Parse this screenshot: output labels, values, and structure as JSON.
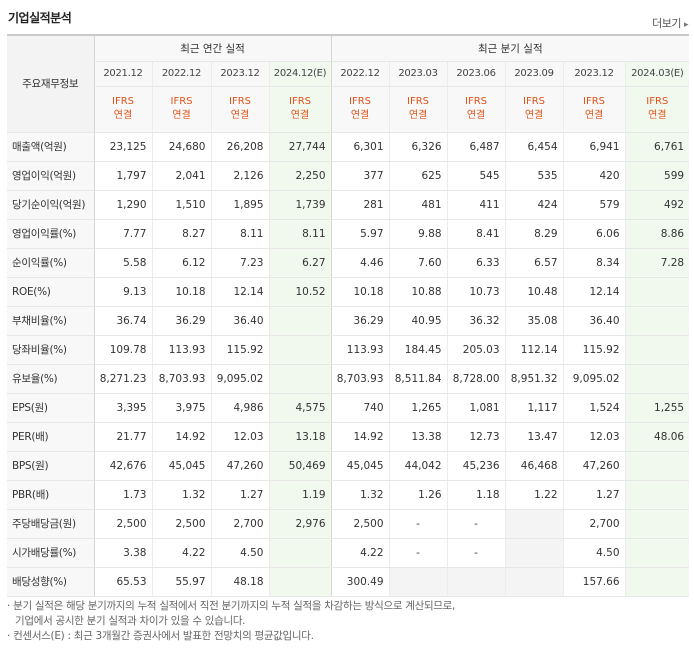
{
  "header": {
    "title": "기업실적분석",
    "more_label": "더보기",
    "more_arrow": "▸"
  },
  "table": {
    "row_header_label": "주요재무정보",
    "annual_group_label": "최근 연간 실적",
    "quarter_group_label": "최근 분기 실적",
    "periods": [
      "2021.12",
      "2022.12",
      "2023.12",
      "2024.12(E)",
      "2022.12",
      "2023.03",
      "2023.06",
      "2023.09",
      "2023.12",
      "2024.03(E)"
    ],
    "standard_line1": "IFRS",
    "standard_line2": "연결",
    "rows": [
      {
        "label": "매출액(억원)",
        "values": [
          "23,125",
          "24,680",
          "26,208",
          "27,744",
          "6,301",
          "6,326",
          "6,487",
          "6,454",
          "6,941",
          "6,761"
        ]
      },
      {
        "label": "영업이익(억원)",
        "values": [
          "1,797",
          "2,041",
          "2,126",
          "2,250",
          "377",
          "625",
          "545",
          "535",
          "420",
          "599"
        ]
      },
      {
        "label": "당기순이익(억원)",
        "values": [
          "1,290",
          "1,510",
          "1,895",
          "1,739",
          "281",
          "481",
          "411",
          "424",
          "579",
          "492"
        ]
      },
      {
        "label": "영업이익률(%)",
        "values": [
          "7.77",
          "8.27",
          "8.11",
          "8.11",
          "5.97",
          "9.88",
          "8.41",
          "8.29",
          "6.06",
          "8.86"
        ]
      },
      {
        "label": "순이익률(%)",
        "values": [
          "5.58",
          "6.12",
          "7.23",
          "6.27",
          "4.46",
          "7.60",
          "6.33",
          "6.57",
          "8.34",
          "7.28"
        ]
      },
      {
        "label": "ROE(%)",
        "values": [
          "9.13",
          "10.18",
          "12.14",
          "10.52",
          "10.18",
          "10.88",
          "10.73",
          "10.48",
          "12.14",
          ""
        ]
      },
      {
        "label": "부채비율(%)",
        "values": [
          "36.74",
          "36.29",
          "36.40",
          "",
          "36.29",
          "40.95",
          "36.32",
          "35.08",
          "36.40",
          ""
        ]
      },
      {
        "label": "당좌비율(%)",
        "values": [
          "109.78",
          "113.93",
          "115.92",
          "",
          "113.93",
          "184.45",
          "205.03",
          "112.14",
          "115.92",
          ""
        ]
      },
      {
        "label": "유보율(%)",
        "values": [
          "8,271.23",
          "8,703.93",
          "9,095.02",
          "",
          "8,703.93",
          "8,511.84",
          "8,728.00",
          "8,951.32",
          "9,095.02",
          ""
        ]
      },
      {
        "label": "EPS(원)",
        "values": [
          "3,395",
          "3,975",
          "4,986",
          "4,575",
          "740",
          "1,265",
          "1,081",
          "1,117",
          "1,524",
          "1,255"
        ]
      },
      {
        "label": "PER(배)",
        "values": [
          "21.77",
          "14.92",
          "12.03",
          "13.18",
          "14.92",
          "13.38",
          "12.73",
          "13.47",
          "12.03",
          "48.06"
        ]
      },
      {
        "label": "BPS(원)",
        "values": [
          "42,676",
          "45,045",
          "47,260",
          "50,469",
          "45,045",
          "44,042",
          "45,236",
          "46,468",
          "47,260",
          ""
        ]
      },
      {
        "label": "PBR(배)",
        "values": [
          "1.73",
          "1.32",
          "1.27",
          "1.19",
          "1.32",
          "1.26",
          "1.18",
          "1.22",
          "1.27",
          ""
        ]
      },
      {
        "label": "주당배당금(원)",
        "values": [
          "2,500",
          "2,500",
          "2,700",
          "2,976",
          "2,500",
          "-",
          "-",
          "",
          "2,700",
          ""
        ]
      },
      {
        "label": "시가배당률(%)",
        "values": [
          "3.38",
          "4.22",
          "4.50",
          "",
          "4.22",
          "-",
          "-",
          "",
          "4.50",
          ""
        ]
      },
      {
        "label": "배당성향(%)",
        "values": [
          "65.53",
          "55.97",
          "48.18",
          "",
          "300.49",
          "",
          "",
          "",
          "157.66",
          ""
        ]
      }
    ]
  },
  "notes": {
    "bullet": "·",
    "line1": "분기 실적은 해당 분기까지의 누적 실적에서 직전 분기까지의 누적 실적을 차감하는 방식으로 계산되므로,",
    "line2": "기업에서 공시한 분기 실적과 차이가 있을 수 있습니다.",
    "line3": "컨센서스(E) : 최근 3개월간 증권사에서 발표한 전망치의 평균값입니다."
  }
}
